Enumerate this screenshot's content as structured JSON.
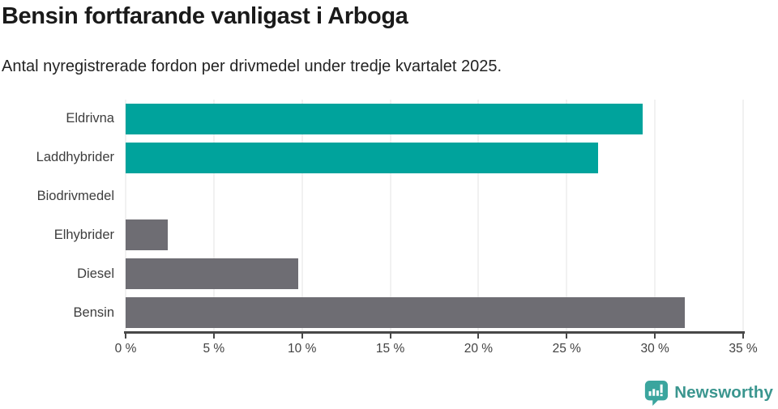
{
  "header": {
    "title": "Bensin fortfarande vanligast i Arboga",
    "subtitle": "Antal nyregistrerade fordon per drivmedel under tredje kvartalet 2025."
  },
  "chart_data": {
    "type": "bar",
    "orientation": "horizontal",
    "title": "Bensin fortfarande vanligast i Arboga",
    "subtitle": "Antal nyregistrerade fordon per drivmedel under tredje kvartalet 2025.",
    "categories": [
      "Eldrivna",
      "Laddhybrider",
      "Biodrivmedel",
      "Elhybrider",
      "Diesel",
      "Bensin"
    ],
    "values": [
      29.3,
      26.8,
      0,
      2.4,
      9.8,
      31.7
    ],
    "unit": "%",
    "xlim": [
      0,
      35
    ],
    "x_ticks": [
      0,
      5,
      10,
      15,
      20,
      25,
      30,
      35
    ],
    "x_tick_labels": [
      "0 %",
      "5 %",
      "10 %",
      "15 %",
      "20 %",
      "25 %",
      "30 %",
      "35 %"
    ],
    "bar_colors": [
      "#00a39c",
      "#00a39c",
      "#6e6d73",
      "#6e6d73",
      "#6e6d73",
      "#6e6d73"
    ],
    "grid": true,
    "xlabel": "",
    "ylabel": ""
  },
  "colors": {
    "accent_teal": "#00a39c",
    "neutral_gray": "#6e6d73",
    "gridline": "#e3e3e3",
    "axis": "#474747",
    "brand": "#3b968f"
  },
  "footer": {
    "brand": "Newsworthy"
  }
}
